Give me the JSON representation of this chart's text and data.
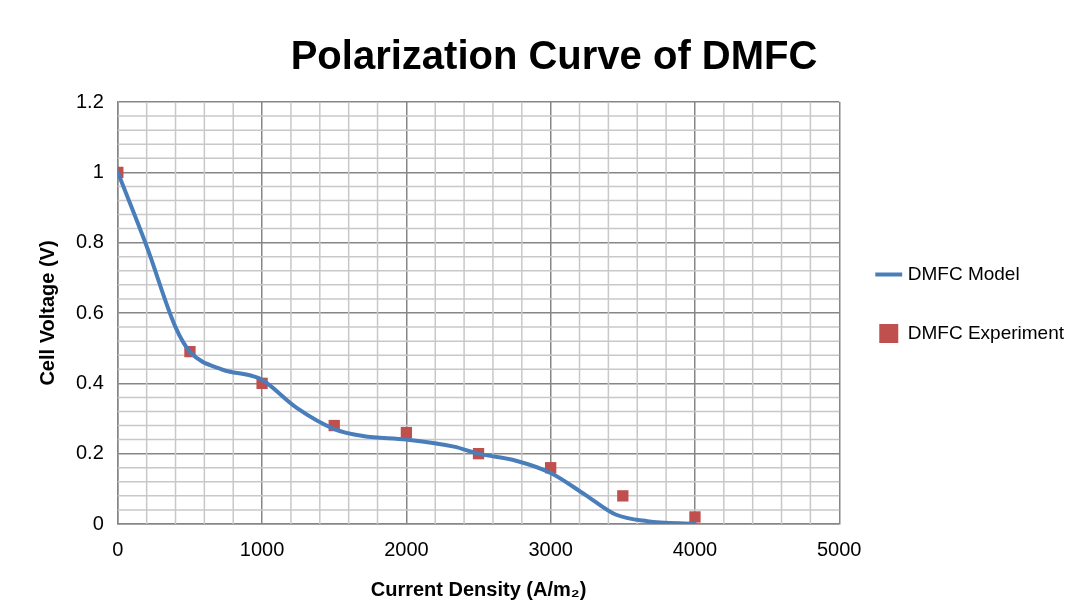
{
  "chart_data": {
    "type": "line",
    "title": "Polarization Curve of DMFC",
    "xlabel": "Current Density (A/m₂)",
    "ylabel": "Cell Voltage (V)",
    "xlim": [
      0,
      5000
    ],
    "xticks": [
      0,
      1000,
      2000,
      3000,
      4000,
      5000
    ],
    "ylim": [
      0,
      1.2
    ],
    "yticks": [
      0,
      0.2,
      0.4,
      0.6,
      0.8,
      1,
      1.2
    ],
    "grid": true,
    "legend": "right",
    "series": [
      {
        "name": "DMFC Model",
        "type": "line",
        "marker": "none",
        "line_style": "solid",
        "color": "#4a7ebb",
        "x": [
          0,
          200,
          400,
          500,
          720,
          940,
          1000,
          1240,
          1500,
          1700,
          2000,
          2330,
          2500,
          2760,
          3000,
          3240,
          3450,
          3670,
          4000
        ],
        "values": [
          1.0,
          0.79,
          0.56,
          0.49,
          0.44,
          0.42,
          0.41,
          0.33,
          0.27,
          0.25,
          0.24,
          0.22,
          0.2,
          0.18,
          0.145,
          0.083,
          0.027,
          0.008,
          0.0
        ]
      },
      {
        "name": "DMFC Experiment",
        "type": "scatter",
        "marker": "square",
        "color": "#c0504d",
        "x": [
          0,
          500,
          1000,
          1500,
          2000,
          2500,
          3000,
          3500,
          4000
        ],
        "values": [
          1.0,
          0.49,
          0.4,
          0.28,
          0.26,
          0.2,
          0.16,
          0.08,
          0.02
        ]
      }
    ]
  }
}
